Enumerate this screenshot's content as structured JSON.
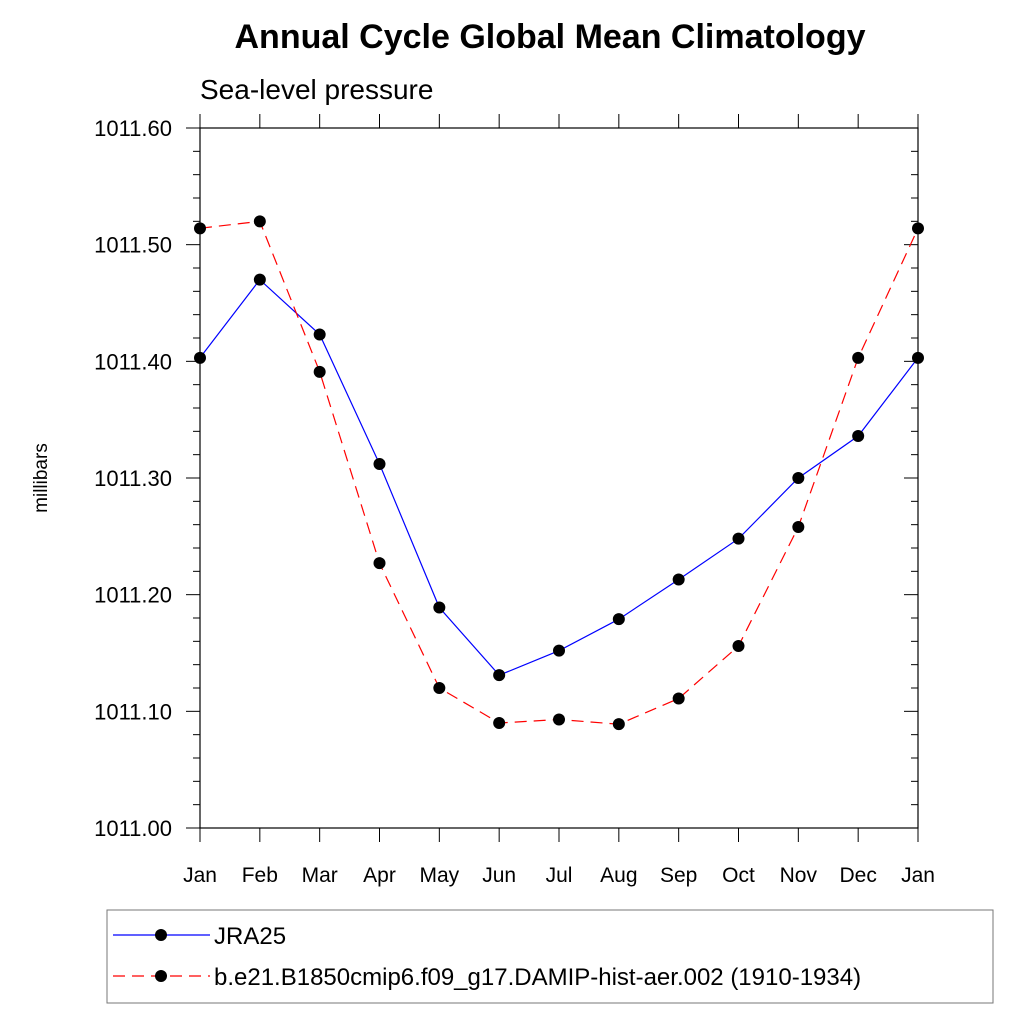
{
  "chart_data": {
    "type": "line",
    "title": "Annual Cycle Global Mean Climatology",
    "subtitle": "Sea-level pressure",
    "ylabel": "millibars",
    "xlabel": "",
    "categories": [
      "Jan",
      "Feb",
      "Mar",
      "Apr",
      "May",
      "Jun",
      "Jul",
      "Aug",
      "Sep",
      "Oct",
      "Nov",
      "Dec",
      "Jan"
    ],
    "ylim": [
      1011.0,
      1011.6
    ],
    "yticks": [
      "1011.00",
      "1011.10",
      "1011.20",
      "1011.30",
      "1011.40",
      "1011.50",
      "1011.60"
    ],
    "grid": false,
    "legend_position": "bottom",
    "series": [
      {
        "name": "JRA25",
        "color": "#0000ff",
        "style": "solid",
        "marker": "filled-circle",
        "values": [
          1011.403,
          1011.47,
          1011.423,
          1011.312,
          1011.189,
          1011.131,
          1011.152,
          1011.179,
          1011.213,
          1011.248,
          1011.3,
          1011.336,
          1011.403
        ]
      },
      {
        "name": "b.e21.B1850cmip6.f09_g17.DAMIP-hist-aer.002 (1910-1934)",
        "color": "#ff0000",
        "style": "dashed",
        "marker": "filled-circle",
        "values": [
          1011.514,
          1011.52,
          1011.391,
          1011.227,
          1011.12,
          1011.09,
          1011.093,
          1011.089,
          1011.111,
          1011.156,
          1011.258,
          1011.403,
          1011.514
        ]
      }
    ]
  }
}
